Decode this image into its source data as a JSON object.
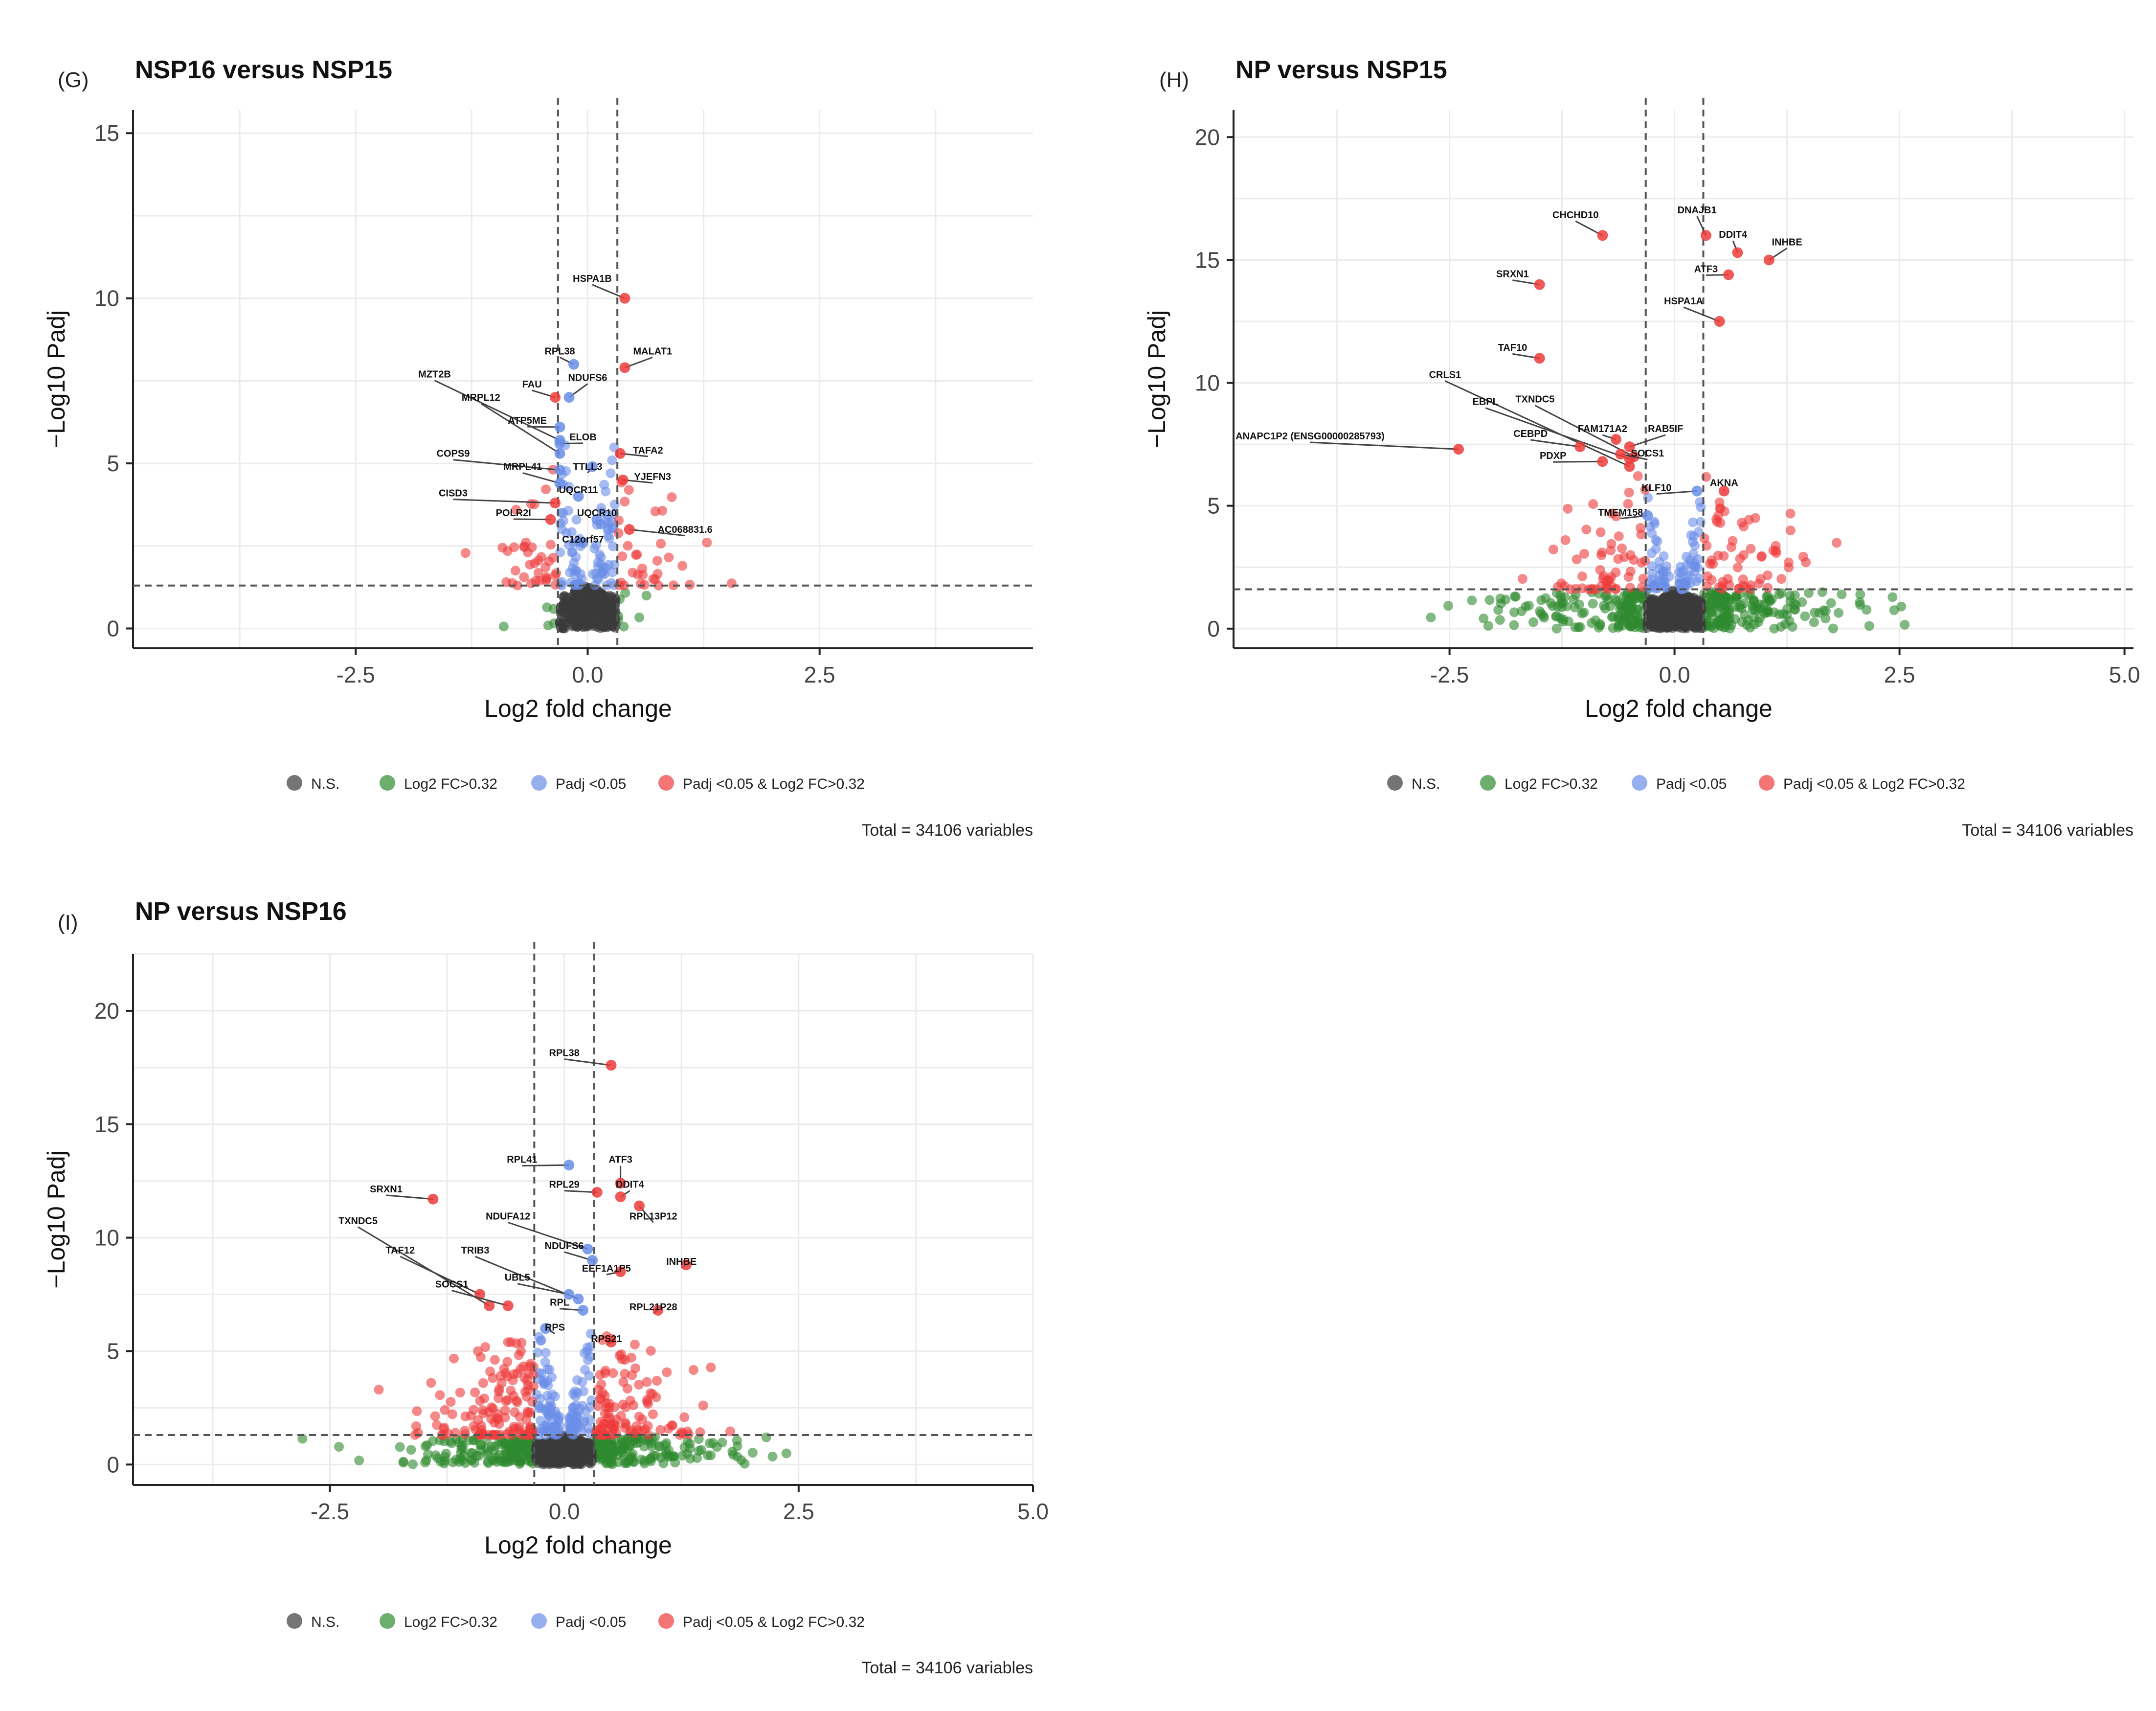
{
  "figure": {
    "legend_items": [
      "N.S.",
      "Log2 FC>0.32",
      "Padj <0.05",
      "Padj <0.05 & Log2 FC>0.32"
    ]
  },
  "chart_data": [
    {
      "type": "scatter",
      "panel_label": "(G)",
      "title": "NSP16 versus NSP15",
      "xlabel": "Log2 fold change",
      "ylabel": "−Log10 Padj",
      "xlim": [
        -4.9,
        4.8
      ],
      "ylim": [
        -0.6,
        15.7
      ],
      "x_ticks": [
        -2.5,
        0.0,
        2.5
      ],
      "x_tick_labels": [
        "-2.5",
        "0.0",
        "2.5"
      ],
      "y_ticks": [
        0,
        5,
        10,
        15
      ],
      "y_tick_labels": [
        "0",
        "5",
        "10",
        "15"
      ],
      "fc_cutoff": 0.32,
      "p_cutoff_y": 1.3,
      "legend": [
        "N.S.",
        "Log2 FC>0.32",
        "Padj <0.05",
        "Padj <0.05 & Log2 FC>0.32"
      ],
      "legend_position": "bottom",
      "caption": "Total = 34106 variables",
      "labeled_points": [
        {
          "gene": "HSPA1B",
          "x": 0.4,
          "y": 10.0,
          "lx": 0.05,
          "ly": 10.5
        },
        {
          "gene": "MALAT1",
          "x": 0.4,
          "y": 7.9,
          "lx": 0.7,
          "ly": 8.3
        },
        {
          "gene": "RPL38",
          "x": -0.15,
          "y": 8.0,
          "lx": -0.3,
          "ly": 8.3
        },
        {
          "gene": "NDUFS6",
          "x": -0.2,
          "y": 7.0,
          "lx": 0.0,
          "ly": 7.5
        },
        {
          "gene": "MZT2B",
          "x": -0.3,
          "y": 5.7,
          "lx": -1.65,
          "ly": 7.6
        },
        {
          "gene": "FAU",
          "x": -0.35,
          "y": 7.0,
          "lx": -0.6,
          "ly": 7.3
        },
        {
          "gene": "MRPL12",
          "x": -0.3,
          "y": 5.3,
          "lx": -1.15,
          "ly": 6.9
        },
        {
          "gene": "ATP5ME",
          "x": -0.3,
          "y": 6.1,
          "lx": -0.65,
          "ly": 6.2
        },
        {
          "gene": "ELOB",
          "x": -0.3,
          "y": 5.6,
          "lx": -0.05,
          "ly": 5.7
        },
        {
          "gene": "TAFA2",
          "x": 0.35,
          "y": 5.3,
          "lx": 0.65,
          "ly": 5.3
        },
        {
          "gene": "COPS9",
          "x": -0.3,
          "y": 4.8,
          "lx": -1.45,
          "ly": 5.2
        },
        {
          "gene": "MRPL41",
          "x": -0.3,
          "y": 4.4,
          "lx": -0.7,
          "ly": 4.8
        },
        {
          "gene": "TTLL3",
          "x": 0.05,
          "y": 4.9,
          "lx": 0.0,
          "ly": 4.8
        },
        {
          "gene": "YJEFN3",
          "x": 0.38,
          "y": 4.5,
          "lx": 0.7,
          "ly": 4.5
        },
        {
          "gene": "CISD3",
          "x": -0.35,
          "y": 3.8,
          "lx": -1.45,
          "ly": 4.0
        },
        {
          "gene": "UQCR11",
          "x": -0.1,
          "y": 4.0,
          "lx": -0.1,
          "ly": 4.1
        },
        {
          "gene": "POLR2I",
          "x": -0.4,
          "y": 3.3,
          "lx": -0.8,
          "ly": 3.4
        },
        {
          "gene": "UQCR10",
          "x": 0.1,
          "y": 3.3,
          "lx": 0.1,
          "ly": 3.4
        },
        {
          "gene": "AC068831.6",
          "x": 0.45,
          "y": 3.0,
          "lx": 1.05,
          "ly": 2.9
        },
        {
          "gene": "C12orf57",
          "x": -0.05,
          "y": 2.6,
          "lx": -0.05,
          "ly": 2.6
        }
      ],
      "scatter_params": {
        "seed": 11,
        "ns": 320,
        "green": 12,
        "blue": 90,
        "red": 70,
        "red_spread": 0.55,
        "red_max": 5.0,
        "blue_max": 7.2,
        "ns_spread": 0.22,
        "green_spread": 0.5
      }
    },
    {
      "type": "scatter",
      "panel_label": "(H)",
      "title": "NP versus NSP15",
      "xlabel": "Log2 fold change",
      "ylabel": "−Log10 Padj",
      "xlim": [
        -4.9,
        5.1
      ],
      "ylim": [
        -0.8,
        21.1
      ],
      "x_ticks": [
        -2.5,
        0.0,
        2.5,
        5.0
      ],
      "x_tick_labels": [
        "-2.5",
        "0.0",
        "2.5",
        "5.0"
      ],
      "y_ticks": [
        0,
        5,
        10,
        15,
        20
      ],
      "y_tick_labels": [
        "0",
        "5",
        "10",
        "15",
        "20"
      ],
      "fc_cutoff": 0.32,
      "p_cutoff_y": 1.6,
      "legend": [
        "N.S.",
        "Log2 FC>0.32",
        "Padj <0.05",
        "Padj <0.05 & Log2 FC>0.32"
      ],
      "legend_position": "bottom",
      "caption": "Total = 34106 variables",
      "labeled_points": [
        {
          "gene": "CHCHD10",
          "x": -0.8,
          "y": 16.0,
          "lx": -1.1,
          "ly": 16.7
        },
        {
          "gene": "DNAJB1",
          "x": 0.35,
          "y": 16.0,
          "lx": 0.25,
          "ly": 16.9
        },
        {
          "gene": "DDIT4",
          "x": 0.7,
          "y": 15.3,
          "lx": 0.65,
          "ly": 15.9
        },
        {
          "gene": "INHBE",
          "x": 1.05,
          "y": 15.0,
          "lx": 1.25,
          "ly": 15.6
        },
        {
          "gene": "ATF3",
          "x": 0.6,
          "y": 14.4,
          "lx": 0.35,
          "ly": 14.5
        },
        {
          "gene": "SRXN1",
          "x": -1.5,
          "y": 14.0,
          "lx": -1.8,
          "ly": 14.3
        },
        {
          "gene": "HSPA1A",
          "x": 0.5,
          "y": 12.5,
          "lx": 0.1,
          "ly": 13.2
        },
        {
          "gene": "TAF10",
          "x": -1.5,
          "y": 11.0,
          "lx": -1.8,
          "ly": 11.3
        },
        {
          "gene": "CRLS1",
          "x": -0.5,
          "y": 6.6,
          "lx": -2.55,
          "ly": 10.2
        },
        {
          "gene": "EBPL",
          "x": -0.5,
          "y": 6.9,
          "lx": -2.1,
          "ly": 9.1
        },
        {
          "gene": "TXNDC5",
          "x": -0.45,
          "y": 7.0,
          "lx": -1.55,
          "ly": 9.2
        },
        {
          "gene": "FAM171A2",
          "x": -0.65,
          "y": 7.7,
          "lx": -0.8,
          "ly": 8.0
        },
        {
          "gene": "RAB5IF",
          "x": -0.5,
          "y": 7.4,
          "lx": -0.1,
          "ly": 8.0
        },
        {
          "gene": "CEBPD",
          "x": -1.05,
          "y": 7.4,
          "lx": -1.6,
          "ly": 7.8
        },
        {
          "gene": "SOCS1",
          "x": -0.6,
          "y": 7.1,
          "lx": -0.3,
          "ly": 7.0
        },
        {
          "gene": "ANAPC1P2 (ENSG00000285793)",
          "x": -2.4,
          "y": 7.3,
          "lx": -4.05,
          "ly": 7.7
        },
        {
          "gene": "PDXP",
          "x": -0.8,
          "y": 6.8,
          "lx": -1.35,
          "ly": 6.9
        },
        {
          "gene": "KLF10",
          "x": 0.25,
          "y": 5.6,
          "lx": -0.2,
          "ly": 5.6
        },
        {
          "gene": "AKNA",
          "x": 0.55,
          "y": 5.6,
          "lx": 0.55,
          "ly": 5.8
        },
        {
          "gene": "TMEM158",
          "x": -0.3,
          "y": 4.6,
          "lx": -0.6,
          "ly": 4.6
        }
      ],
      "scatter_params": {
        "seed": 23,
        "ns": 360,
        "green": 320,
        "blue": 80,
        "red": 120,
        "red_spread": 0.95,
        "red_max": 6.5,
        "blue_max": 6.0,
        "ns_spread": 0.25,
        "green_spread": 1.0
      }
    },
    {
      "type": "scatter",
      "panel_label": "(I)",
      "title": "NP versus NSP16",
      "xlabel": "Log2 fold change",
      "ylabel": "−Log10 Padj",
      "xlim": [
        -4.6,
        5.0
      ],
      "ylim": [
        -0.9,
        22.5
      ],
      "x_ticks": [
        -2.5,
        0.0,
        2.5,
        5.0
      ],
      "x_tick_labels": [
        "-2.5",
        "0.0",
        "2.5",
        "5.0"
      ],
      "y_ticks": [
        0,
        5,
        10,
        15,
        20
      ],
      "y_tick_labels": [
        "0",
        "5",
        "10",
        "15",
        "20"
      ],
      "fc_cutoff": 0.32,
      "p_cutoff_y": 1.3,
      "legend": [
        "N.S.",
        "Log2 FC>0.32",
        "Padj <0.05",
        "Padj <0.05 & Log2 FC>0.32"
      ],
      "legend_position": "bottom",
      "caption": "Total = 34106 variables",
      "labeled_points": [
        {
          "gene": "RPL38",
          "x": 0.5,
          "y": 17.6,
          "lx": 0.0,
          "ly": 18.0
        },
        {
          "gene": "RPL41",
          "x": 0.05,
          "y": 13.2,
          "lx": -0.45,
          "ly": 13.3
        },
        {
          "gene": "ATF3",
          "x": 0.6,
          "y": 12.4,
          "lx": 0.6,
          "ly": 13.3
        },
        {
          "gene": "RPL29",
          "x": 0.35,
          "y": 12.0,
          "lx": 0.0,
          "ly": 12.2
        },
        {
          "gene": "DDIT4",
          "x": 0.6,
          "y": 11.8,
          "lx": 0.7,
          "ly": 12.2
        },
        {
          "gene": "SRXN1",
          "x": -1.4,
          "y": 11.7,
          "lx": -1.9,
          "ly": 12.0
        },
        {
          "gene": "RPL13P12",
          "x": 0.8,
          "y": 11.4,
          "lx": 0.95,
          "ly": 10.8
        },
        {
          "gene": "TXNDC5",
          "x": -0.8,
          "y": 7.0,
          "lx": -2.2,
          "ly": 10.6
        },
        {
          "gene": "NDUFA12",
          "x": 0.25,
          "y": 9.5,
          "lx": -0.6,
          "ly": 10.8
        },
        {
          "gene": "TAF12",
          "x": -0.9,
          "y": 7.5,
          "lx": -1.75,
          "ly": 9.3
        },
        {
          "gene": "NDUFS6",
          "x": 0.3,
          "y": 9.0,
          "lx": 0.0,
          "ly": 9.5
        },
        {
          "gene": "TRIB3",
          "x": 0.15,
          "y": 7.3,
          "lx": -0.95,
          "ly": 9.3
        },
        {
          "gene": "EEF1A1P5",
          "x": 0.6,
          "y": 8.5,
          "lx": 0.45,
          "ly": 8.5
        },
        {
          "gene": "INHBE",
          "x": 1.3,
          "y": 8.8,
          "lx": 1.25,
          "ly": 8.8
        },
        {
          "gene": "SOCS1",
          "x": -0.6,
          "y": 7.0,
          "lx": -1.2,
          "ly": 7.8
        },
        {
          "gene": "UBL5",
          "x": 0.05,
          "y": 7.5,
          "lx": -0.5,
          "ly": 8.1
        },
        {
          "gene": "RPL",
          "x": 0.2,
          "y": 6.8,
          "lx": -0.05,
          "ly": 7.0
        },
        {
          "gene": "RPL21P28",
          "x": 1.0,
          "y": 6.8,
          "lx": 0.95,
          "ly": 6.8
        },
        {
          "gene": "RPS",
          "x": -0.2,
          "y": 6.0,
          "lx": -0.1,
          "ly": 5.9
        },
        {
          "gene": "RPS21",
          "x": 0.5,
          "y": 5.4,
          "lx": 0.45,
          "ly": 5.4
        }
      ],
      "scatter_params": {
        "seed": 37,
        "ns": 380,
        "green": 320,
        "blue": 120,
        "red": 240,
        "red_spread": 0.85,
        "red_max": 6.0,
        "blue_max": 7.5,
        "ns_spread": 0.22,
        "green_spread": 0.9
      }
    }
  ]
}
